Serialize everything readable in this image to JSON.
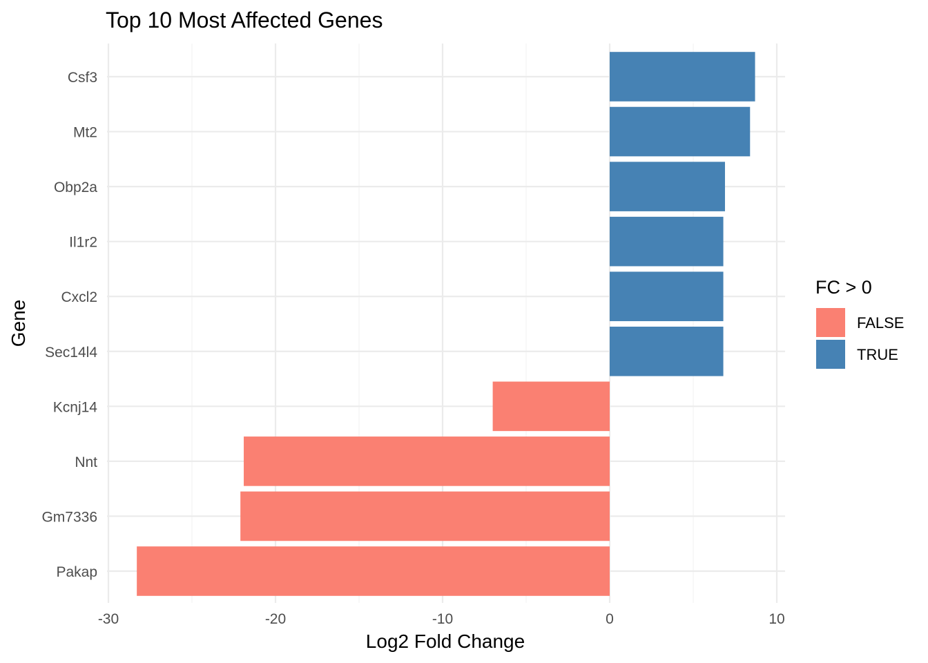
{
  "chart_data": {
    "type": "bar",
    "orientation": "horizontal",
    "title": "Top 10 Most Affected Genes",
    "xlabel": "Log2 Fold Change",
    "ylabel": "Gene",
    "xlim": [
      -30,
      10
    ],
    "x_ticks": [
      "-30",
      "-20",
      "-10",
      "0",
      "10"
    ],
    "categories": [
      "Csf3",
      "Mt2",
      "Obp2a",
      "Il1r2",
      "Cxcl2",
      "Sec14l4",
      "Kcnj14",
      "Nnt",
      "Gm7336",
      "Pakap"
    ],
    "values": [
      8.7,
      8.4,
      6.9,
      6.8,
      6.8,
      6.8,
      -7.0,
      -21.9,
      -22.1,
      -28.3
    ],
    "fill_group": [
      "TRUE",
      "TRUE",
      "TRUE",
      "TRUE",
      "TRUE",
      "TRUE",
      "FALSE",
      "FALSE",
      "FALSE",
      "FALSE"
    ],
    "grid": true,
    "legend": {
      "title": "FC > 0",
      "position": "right",
      "entries": [
        {
          "label": "FALSE",
          "color": "#fa8072"
        },
        {
          "label": "TRUE",
          "color": "#4682b4"
        }
      ]
    }
  }
}
